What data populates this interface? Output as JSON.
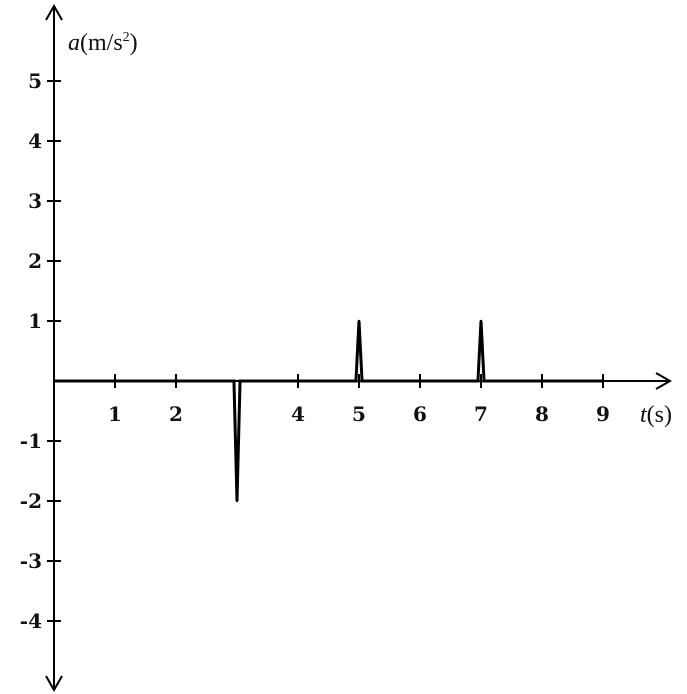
{
  "chart_data": {
    "type": "line",
    "xlabel_var": "t",
    "xlabel_unit": "(s)",
    "ylabel_var": "a",
    "ylabel_unit": "(m/s",
    "ylabel_sup": "2",
    "ylabel_close": ")",
    "xlim": [
      0,
      10
    ],
    "ylim": [
      -5,
      5.7
    ],
    "x_ticks": [
      1,
      2,
      4,
      5,
      6,
      7,
      8,
      9
    ],
    "y_ticks": [
      5,
      4,
      3,
      2,
      1,
      -1,
      -2,
      -3,
      -4
    ],
    "grid": false,
    "series": [
      {
        "x": [
          0,
          2.95,
          3,
          3.05,
          4.95,
          5,
          5.05,
          6.95,
          7,
          7.05,
          9
        ],
        "y": [
          0,
          0,
          -2,
          0,
          0,
          1,
          0,
          0,
          1,
          0,
          0
        ]
      }
    ]
  }
}
